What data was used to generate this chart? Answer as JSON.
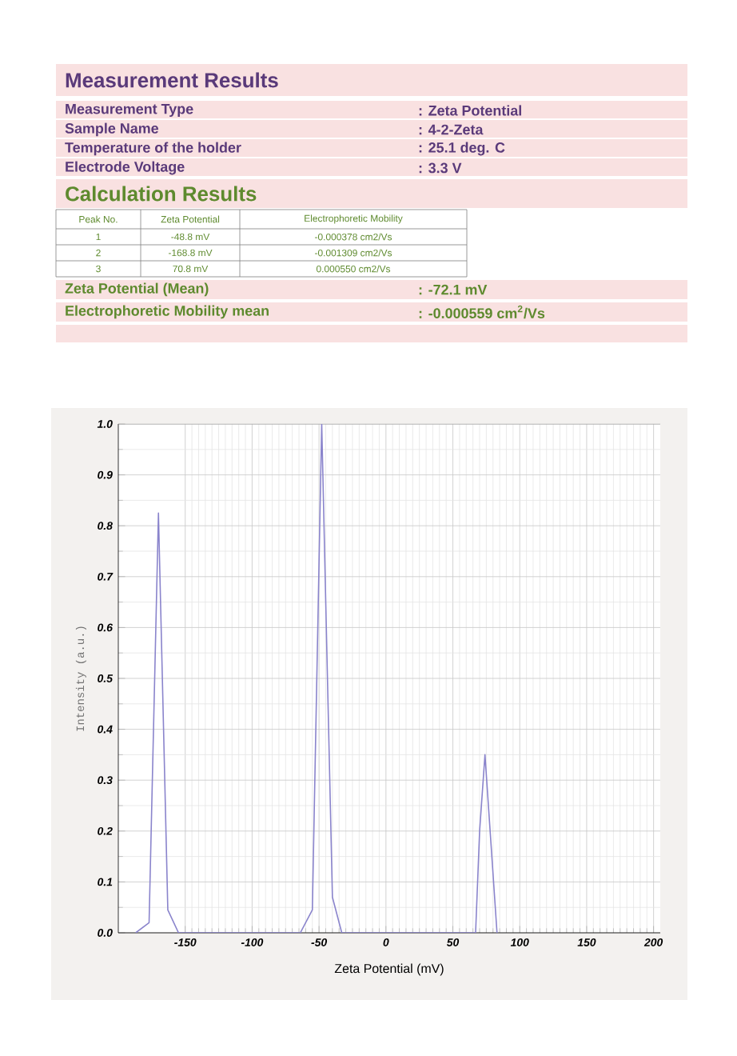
{
  "chart_data": {
    "type": "line",
    "title": "Measurement Results",
    "subtitle": "Calculation Results",
    "xlabel": "Zeta Potential (mV)",
    "ylabel": "Intensity (a.u.)",
    "annotations": [
      "Measurement Type",
      ": Zeta Potential",
      "Sample Name",
      ": 4-2-Zeta",
      "Temperature of the holder",
      ": 25.1 deg. C",
      "Electrode Voltage",
      ": 3.3 V",
      "Peak No.",
      "Zeta Potential",
      "Electrophoretic Mobility",
      "1",
      "-48.8 mV",
      "-0.000378 cm2/Vs",
      "2",
      "-168.8 mV",
      "-0.001309 cm2/Vs",
      "3",
      "70.8 mV",
      "0.000550 cm2/Vs",
      "Zeta Potential (Mean)",
      ": -72.1 mV",
      "Electrophoretic Mobility mean",
      ": -0.000559 cm$^{2}$/Vs"
    ],
    "series": [
      {
        "color": "#8a84cc",
        "x": [
          -187,
          -177,
          -170,
          -163,
          -155,
          -64,
          -55,
          -48,
          -40,
          -33,
          67,
          70,
          74,
          83
        ],
        "values": [
          0,
          0.02,
          0.825,
          0.045,
          0,
          0,
          0.045,
          1.0,
          0.07,
          0,
          0,
          0.2,
          0.35,
          0
        ]
      }
    ],
    "xlim": [
      -200,
      205
    ],
    "ylim": [
      0,
      1
    ],
    "xticks": [
      -150,
      -100,
      -50,
      0,
      50,
      100,
      150,
      200
    ],
    "yticks": [
      {
        "value": 0,
        "label": "0.0"
      },
      0.1,
      0.2,
      0.3,
      0.4,
      0.5,
      0.6,
      0.7,
      0.8,
      0.9,
      {
        "value": 1,
        "label": "1.0"
      }
    ],
    "grid": true
  }
}
